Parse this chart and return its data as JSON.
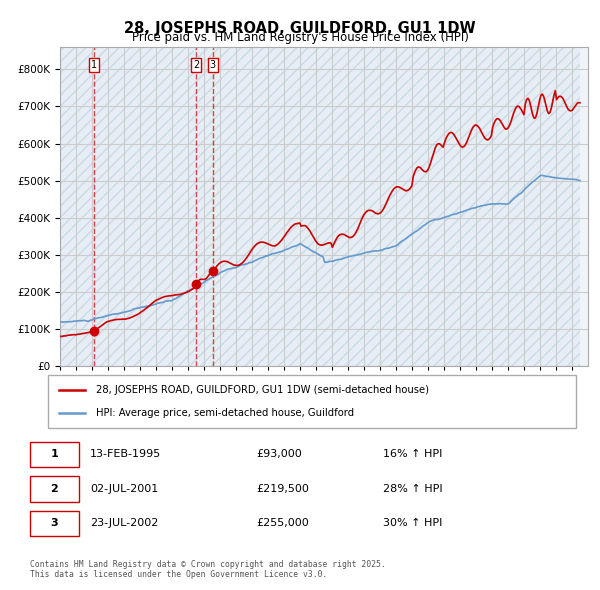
{
  "title": "28, JOSEPHS ROAD, GUILDFORD, GU1 1DW",
  "subtitle": "Price paid vs. HM Land Registry's House Price Index (HPI)",
  "legend_line1": "28, JOSEPHS ROAD, GUILDFORD, GU1 1DW (semi-detached house)",
  "legend_line2": "HPI: Average price, semi-detached house, Guildford",
  "transactions": [
    {
      "num": 1,
      "date": "13-FEB-1995",
      "price": "£93,000",
      "hpi": "16% ↑ HPI",
      "year": 1995.1
    },
    {
      "num": 2,
      "date": "02-JUL-2001",
      "price": "£219,500",
      "hpi": "28% ↑ HPI",
      "year": 2001.5
    },
    {
      "num": 3,
      "date": "23-JUL-2002",
      "price": "£255,000",
      "hpi": "30% ↑ HPI",
      "year": 2002.55
    }
  ],
  "footnote": "Contains HM Land Registry data © Crown copyright and database right 2025.\nThis data is licensed under the Open Government Licence v3.0.",
  "hatch_color": "#c8d8e8",
  "hatch_bg": "#dce8f0",
  "grid_color": "#cccccc",
  "red_line_color": "#cc0000",
  "blue_line_color": "#6699cc",
  "background_color": "#f0f4f8",
  "plot_bg": "#f0f4f8",
  "ylim": [
    0,
    860000
  ],
  "yticks": [
    0,
    100000,
    200000,
    300000,
    400000,
    500000,
    600000,
    700000,
    800000
  ],
  "xlim_start": 1993,
  "xlim_end": 2026
}
